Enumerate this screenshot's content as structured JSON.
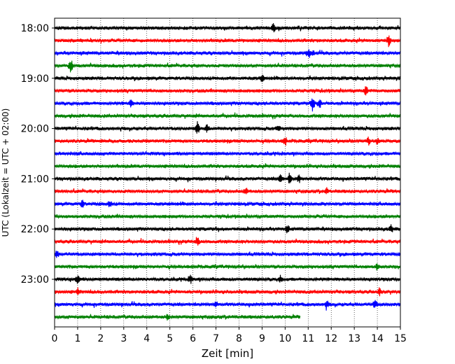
{
  "chart_data": {
    "type": "line",
    "title": "",
    "xlabel": "Zeit  [min]",
    "ylabel": "UTC (Lokalzeit = UTC + 02:00)",
    "xlim": [
      0,
      15
    ],
    "x_ticks": [
      0,
      1,
      2,
      3,
      4,
      5,
      6,
      7,
      8,
      9,
      10,
      11,
      12,
      13,
      14,
      15
    ],
    "x_tick_labels": [
      "0",
      "1",
      "2",
      "3",
      "4",
      "5",
      "6",
      "7",
      "8",
      "9",
      "10",
      "11",
      "12",
      "13",
      "14",
      "15"
    ],
    "y_tick_labels": [
      "18:00",
      "19:00",
      "20:00",
      "21:00",
      "22:00",
      "23:00"
    ],
    "grid": "vertical dotted",
    "legend": "none",
    "trace_interval_min": 15,
    "colors": [
      "#000000",
      "#ff0000",
      "#0000ff",
      "#008000"
    ],
    "traces": [
      {
        "start": "18:00",
        "color": "#000000",
        "end_min": 15,
        "spikes": [
          {
            "t": 9.5,
            "a": 0.55
          }
        ]
      },
      {
        "start": "18:15",
        "color": "#ff0000",
        "end_min": 15,
        "spikes": [
          {
            "t": 14.5,
            "a": 0.75
          }
        ]
      },
      {
        "start": "18:30",
        "color": "#0000ff",
        "end_min": 15,
        "spikes": [
          {
            "t": 11.0,
            "a": 0.6
          },
          {
            "t": 11.2,
            "a": 0.4
          }
        ]
      },
      {
        "start": "18:45",
        "color": "#008000",
        "end_min": 15,
        "spikes": [
          {
            "t": 0.7,
            "a": 1.0
          }
        ]
      },
      {
        "start": "19:00",
        "color": "#000000",
        "end_min": 15,
        "spikes": [
          {
            "t": 9.0,
            "a": 0.45
          }
        ]
      },
      {
        "start": "19:15",
        "color": "#ff0000",
        "end_min": 15,
        "spikes": [
          {
            "t": 13.5,
            "a": 0.8
          }
        ]
      },
      {
        "start": "19:30",
        "color": "#0000ff",
        "end_min": 15,
        "spikes": [
          {
            "t": 11.2,
            "a": 1.1
          },
          {
            "t": 11.5,
            "a": 0.7
          },
          {
            "t": 3.3,
            "a": 0.5
          }
        ]
      },
      {
        "start": "19:45",
        "color": "#008000",
        "end_min": 15,
        "spikes": []
      },
      {
        "start": "20:00",
        "color": "#000000",
        "end_min": 15,
        "spikes": [
          {
            "t": 6.2,
            "a": 1.1
          },
          {
            "t": 6.6,
            "a": 0.6
          },
          {
            "t": 9.7,
            "a": 0.5
          }
        ]
      },
      {
        "start": "20:15",
        "color": "#ff0000",
        "end_min": 15,
        "spikes": [
          {
            "t": 10.0,
            "a": 0.6
          },
          {
            "t": 13.6,
            "a": 0.55
          },
          {
            "t": 14.0,
            "a": 0.5
          }
        ]
      },
      {
        "start": "20:30",
        "color": "#0000ff",
        "end_min": 15,
        "spikes": []
      },
      {
        "start": "20:45",
        "color": "#008000",
        "end_min": 15,
        "spikes": []
      },
      {
        "start": "21:00",
        "color": "#000000",
        "end_min": 15,
        "spikes": [
          {
            "t": 9.8,
            "a": 0.65
          },
          {
            "t": 10.2,
            "a": 0.75
          },
          {
            "t": 10.6,
            "a": 0.55
          }
        ]
      },
      {
        "start": "21:15",
        "color": "#ff0000",
        "end_min": 15,
        "spikes": [
          {
            "t": 8.3,
            "a": 0.45
          },
          {
            "t": 11.8,
            "a": 0.4
          }
        ]
      },
      {
        "start": "21:30",
        "color": "#0000ff",
        "end_min": 15,
        "spikes": [
          {
            "t": 1.2,
            "a": 0.45
          },
          {
            "t": 2.4,
            "a": 0.45
          }
        ]
      },
      {
        "start": "21:45",
        "color": "#008000",
        "end_min": 15,
        "spikes": []
      },
      {
        "start": "22:00",
        "color": "#000000",
        "end_min": 15,
        "spikes": [
          {
            "t": 10.1,
            "a": 0.45
          },
          {
            "t": 14.6,
            "a": 0.6
          }
        ]
      },
      {
        "start": "22:15",
        "color": "#ff0000",
        "end_min": 15,
        "spikes": [
          {
            "t": 6.2,
            "a": 0.75
          }
        ]
      },
      {
        "start": "22:30",
        "color": "#0000ff",
        "end_min": 15,
        "spikes": [
          {
            "t": 0.1,
            "a": 0.6
          }
        ]
      },
      {
        "start": "22:45",
        "color": "#008000",
        "end_min": 15,
        "spikes": [
          {
            "t": 14.0,
            "a": 0.45
          }
        ]
      },
      {
        "start": "23:00",
        "color": "#000000",
        "end_min": 15,
        "spikes": [
          {
            "t": 1.0,
            "a": 0.6
          },
          {
            "t": 5.9,
            "a": 0.55
          },
          {
            "t": 9.8,
            "a": 0.65
          }
        ]
      },
      {
        "start": "23:15",
        "color": "#ff0000",
        "end_min": 15,
        "spikes": [
          {
            "t": 1.0,
            "a": 0.6
          },
          {
            "t": 14.1,
            "a": 0.55
          }
        ]
      },
      {
        "start": "23:30",
        "color": "#0000ff",
        "end_min": 15,
        "spikes": [
          {
            "t": 7.0,
            "a": 0.5
          },
          {
            "t": 11.8,
            "a": 0.6
          },
          {
            "t": 13.9,
            "a": 0.65
          }
        ]
      },
      {
        "start": "23:45",
        "color": "#008000",
        "end_min": 10.65,
        "spikes": [
          {
            "t": 4.9,
            "a": 0.4
          }
        ]
      }
    ]
  }
}
